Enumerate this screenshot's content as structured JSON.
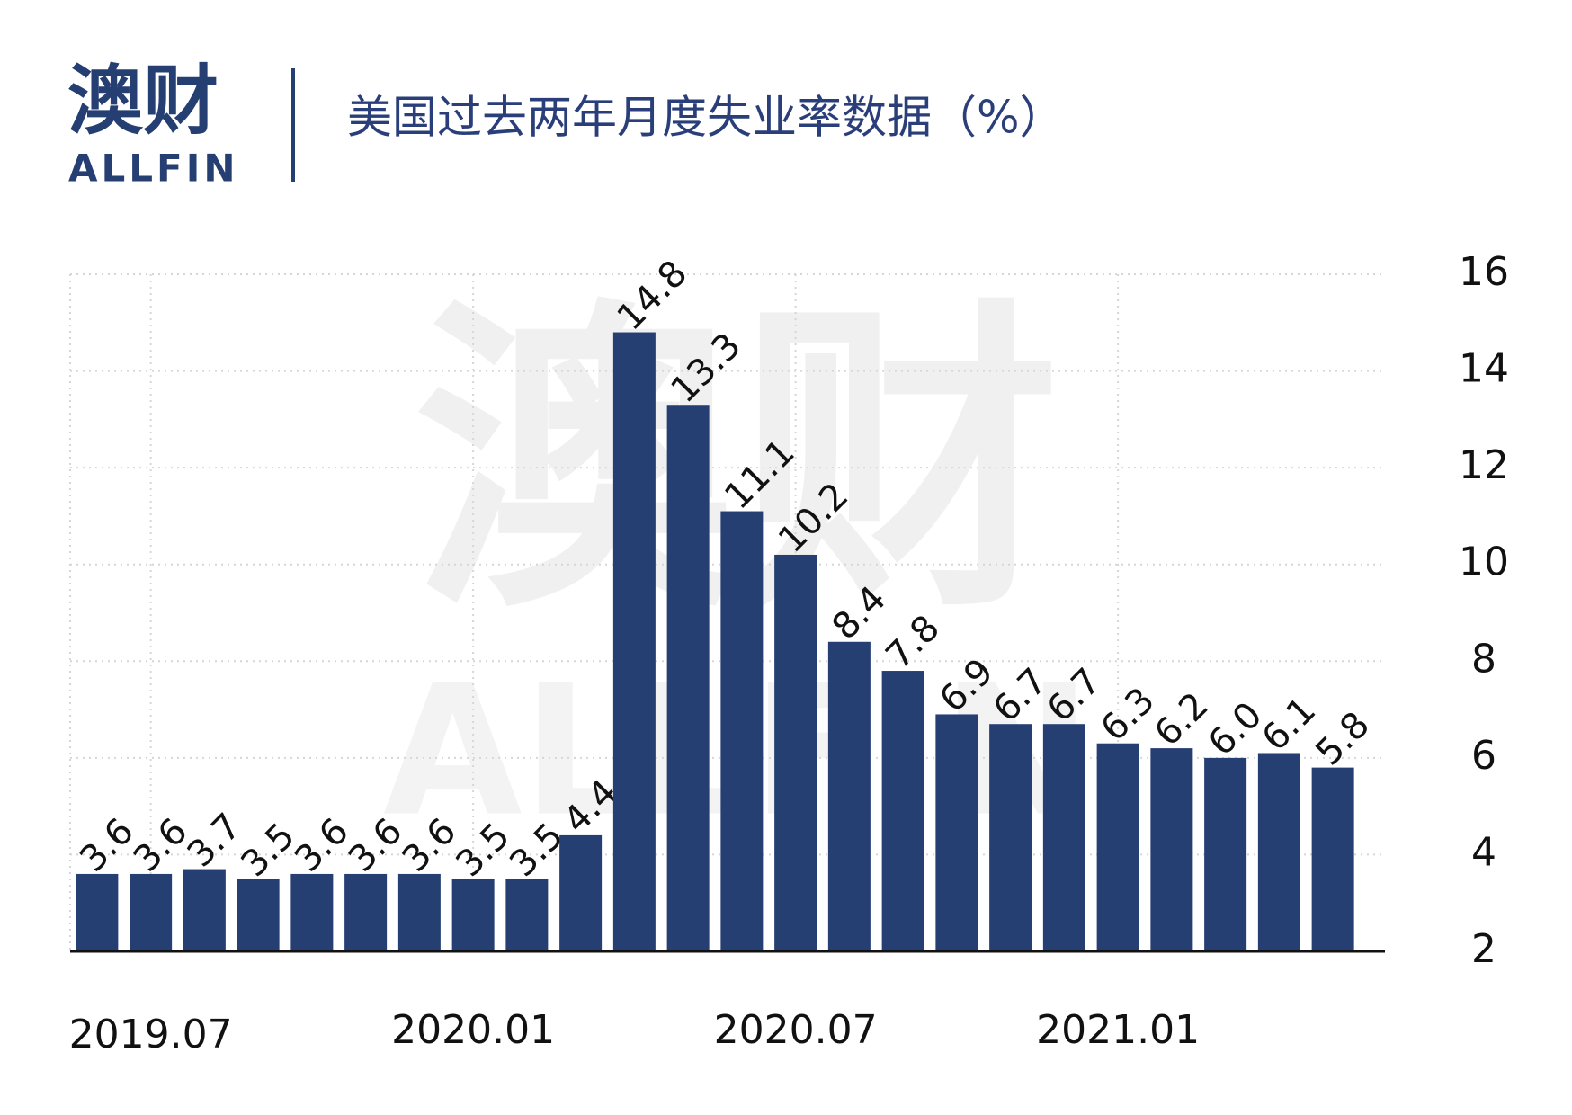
{
  "logo": {
    "name": "澳财",
    "latin": "ALLFIN"
  },
  "watermark": {
    "name": "澳财",
    "latin": "ALLFIN"
  },
  "chart_data": {
    "type": "bar",
    "title": "美国过去两年月度失业率数据（%）",
    "categories": [
      null,
      "2019.07",
      null,
      null,
      null,
      null,
      null,
      "2020.01",
      null,
      null,
      null,
      null,
      null,
      "2020.07",
      null,
      null,
      null,
      null,
      null,
      "2021.01",
      null,
      null,
      null,
      null
    ],
    "values": [
      3.6,
      3.6,
      3.7,
      3.5,
      3.6,
      3.6,
      3.6,
      3.5,
      3.5,
      4.4,
      14.8,
      13.3,
      11.1,
      10.2,
      8.4,
      7.8,
      6.9,
      6.7,
      6.7,
      6.3,
      6.2,
      6.0,
      6.1,
      5.8
    ],
    "value_labels": [
      "3.6",
      "3.6",
      "3.7",
      "3.5",
      "3.6",
      "3.6",
      "3.6",
      "3.5",
      "3.5",
      "4.4",
      "14.8",
      "13.3",
      "11.1",
      "10.2",
      "8.4",
      "7.8",
      "6.9",
      "6.7",
      "6.7",
      "6.3",
      "6.2",
      "6.0",
      "6.1",
      "5.8"
    ],
    "color": "#263f73",
    "ylim": [
      2,
      16
    ],
    "yticks": [
      2,
      4,
      6,
      8,
      10,
      12,
      14,
      16
    ],
    "y_axis_side": "right",
    "grid": true
  }
}
